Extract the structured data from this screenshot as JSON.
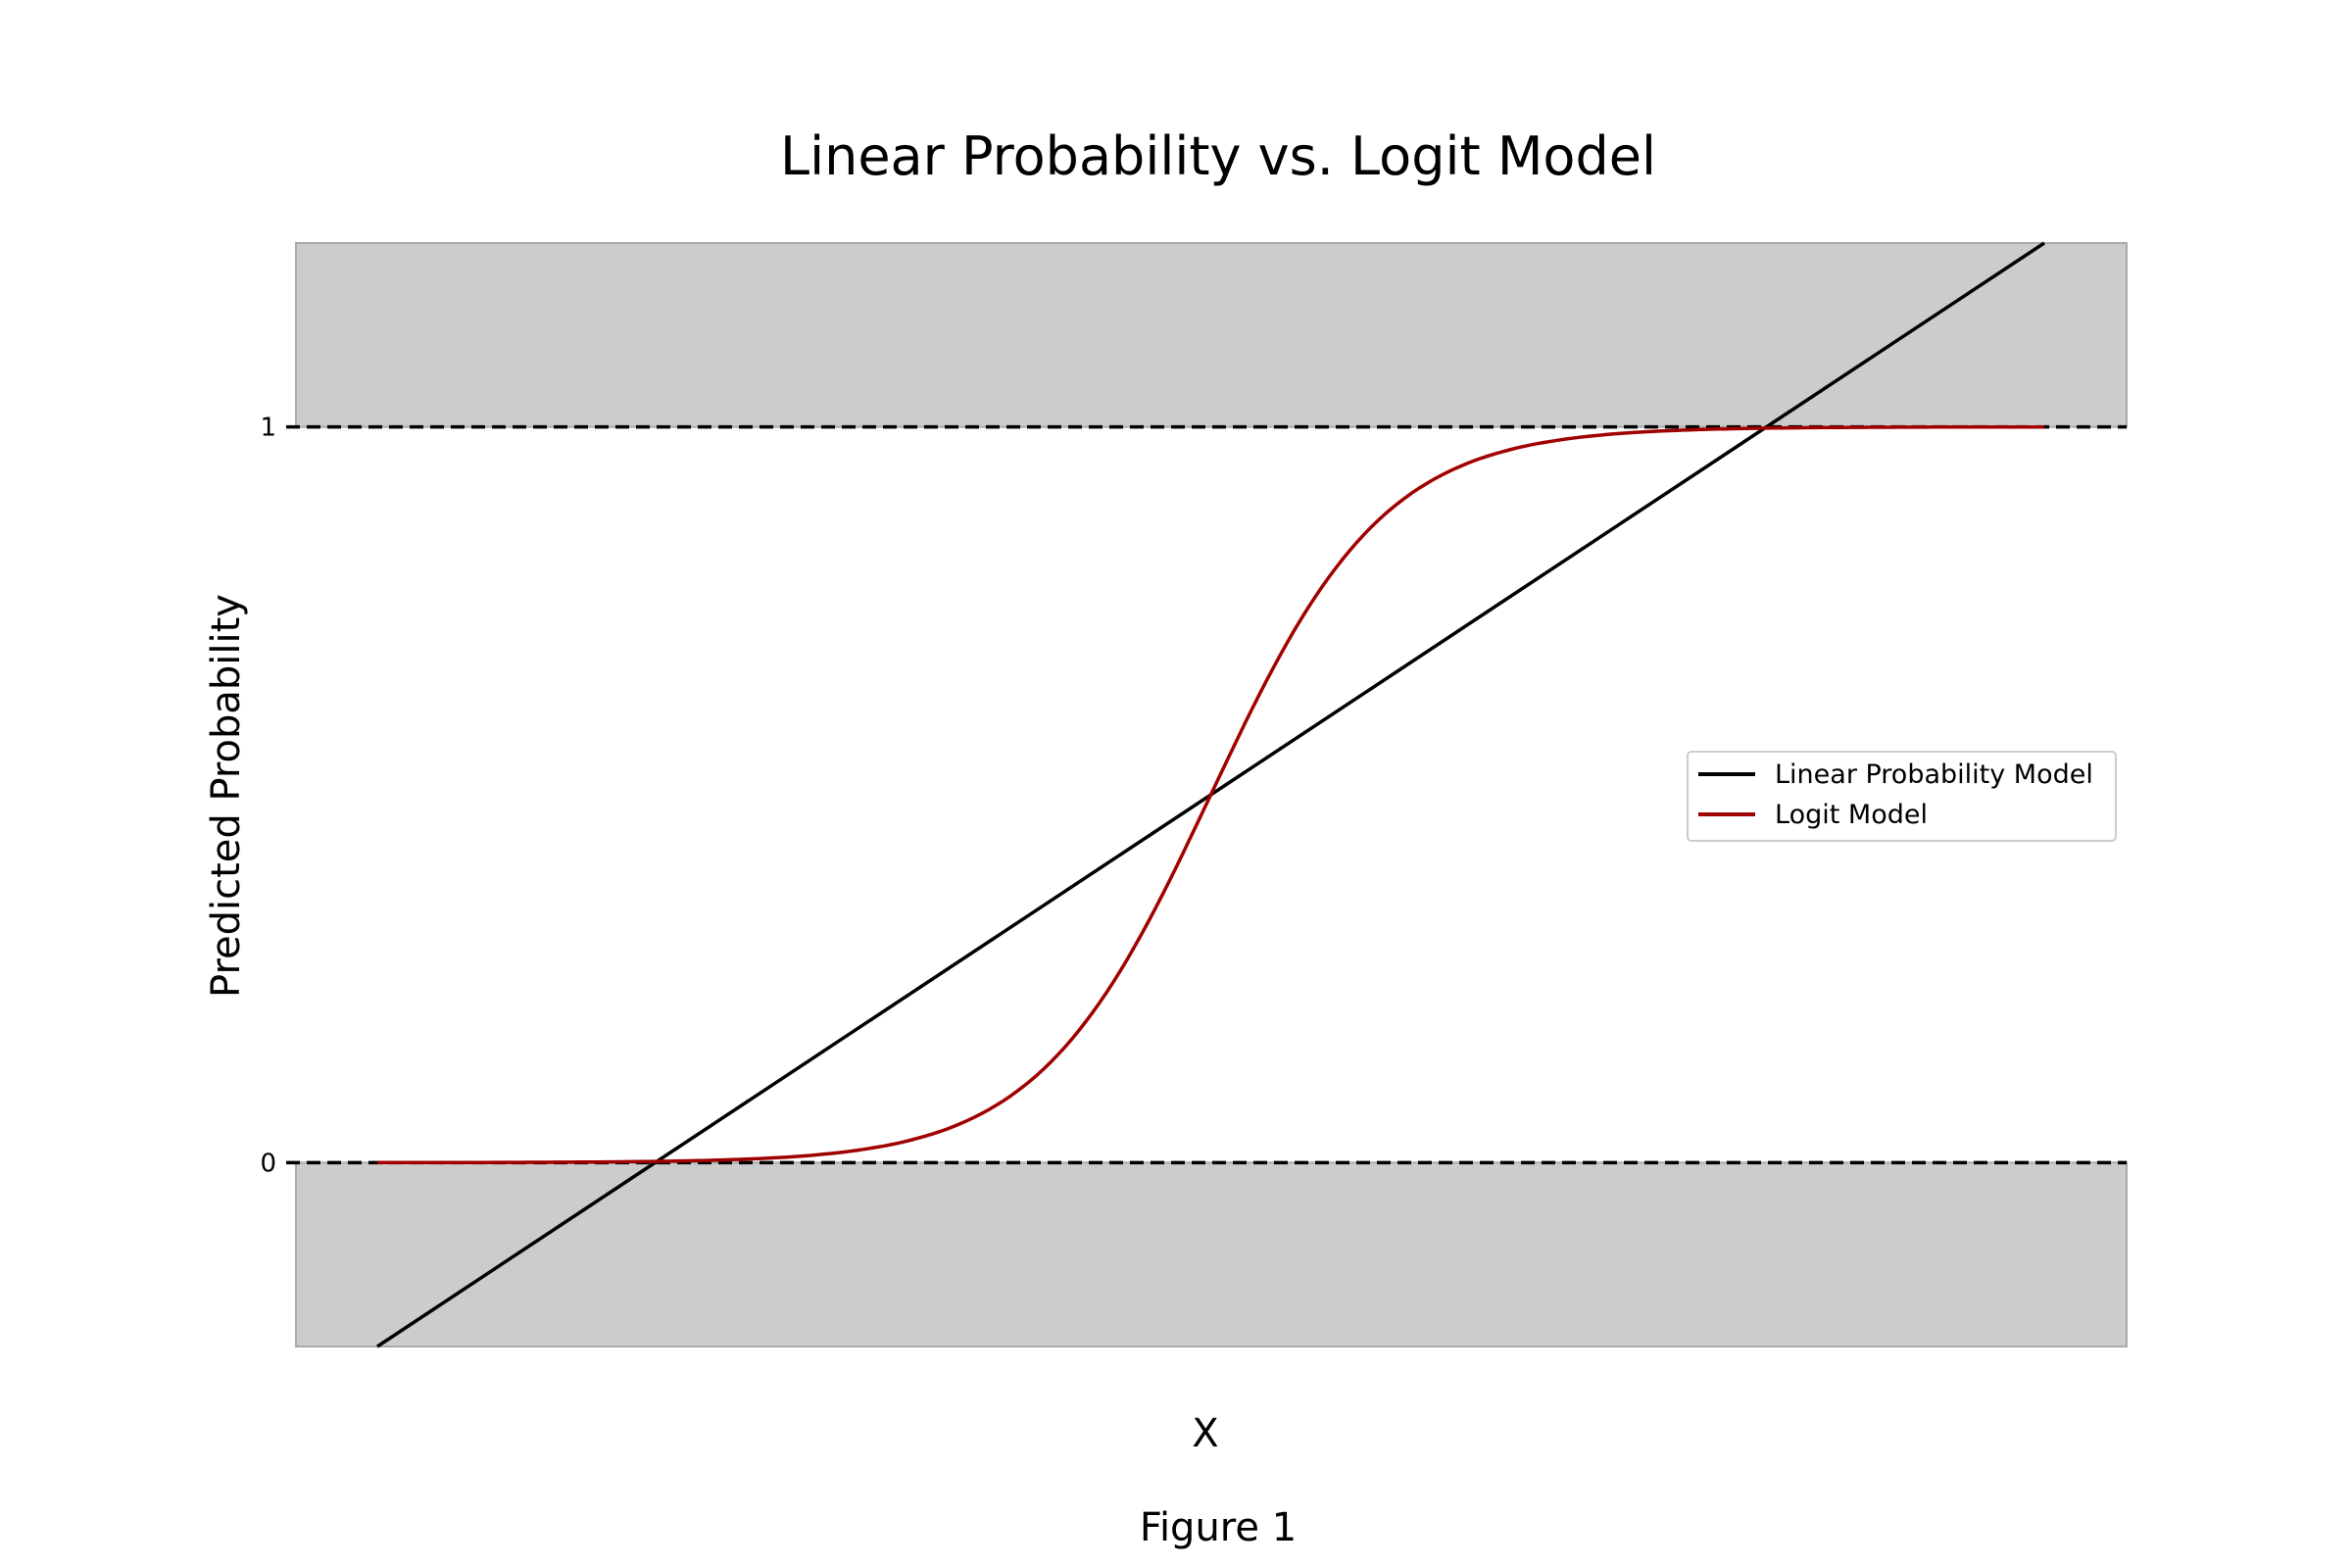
{
  "chart_data": {
    "type": "line",
    "title": "Linear Probability vs. Logit Model",
    "xlabel": "X",
    "ylabel": "Predicted Probability",
    "caption": "Figure 1",
    "xlim": [
      -3,
      3
    ],
    "ylim": [
      -0.25,
      1.25
    ],
    "yticks": [
      0,
      1
    ],
    "ytick_labels": [
      "0",
      "1"
    ],
    "xticks_visible": false,
    "grid": false,
    "legend_position": "center-right",
    "shaded_regions": [
      {
        "y_from": -0.25,
        "y_to": 0,
        "color": "#cccccc"
      },
      {
        "y_from": 1,
        "y_to": 1.25,
        "color": "#cccccc"
      }
    ],
    "reference_lines": [
      {
        "y": 0,
        "style": "dashed",
        "color": "#000000"
      },
      {
        "y": 1,
        "style": "dashed",
        "color": "#000000"
      }
    ],
    "series": [
      {
        "name": "Linear Probability Model",
        "color": "#000000",
        "kind": "linear",
        "x": [
          -3,
          3
        ],
        "y": [
          -0.25,
          1.25
        ]
      },
      {
        "name": "Logit Model",
        "color": "#a00000",
        "kind": "logistic",
        "x": [
          -3,
          -2,
          -1.5,
          -1,
          -0.5,
          0,
          0.5,
          1,
          1.5,
          2,
          3
        ],
        "y": [
          0.0,
          0.004,
          0.03,
          0.13,
          0.33,
          0.5,
          0.67,
          0.87,
          0.97,
          0.996,
          1.0
        ]
      }
    ]
  }
}
